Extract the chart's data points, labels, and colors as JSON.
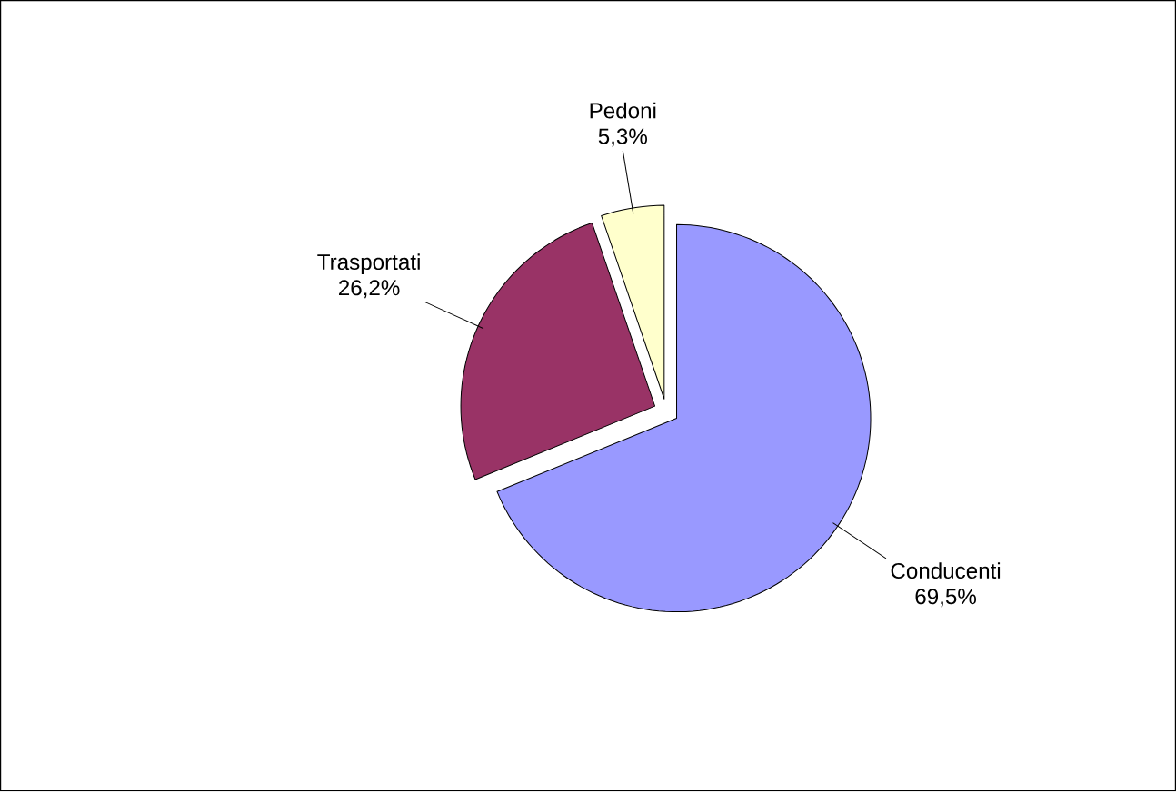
{
  "chart_data": {
    "type": "pie",
    "categories": [
      "Conducenti",
      "Trasportati",
      "Pedoni"
    ],
    "values": [
      69.5,
      26.2,
      5.3
    ],
    "value_labels": [
      "69,5%",
      "26,2%",
      "5,3%"
    ],
    "colors": [
      "#9999ff",
      "#993366",
      "#ffffcc"
    ]
  }
}
